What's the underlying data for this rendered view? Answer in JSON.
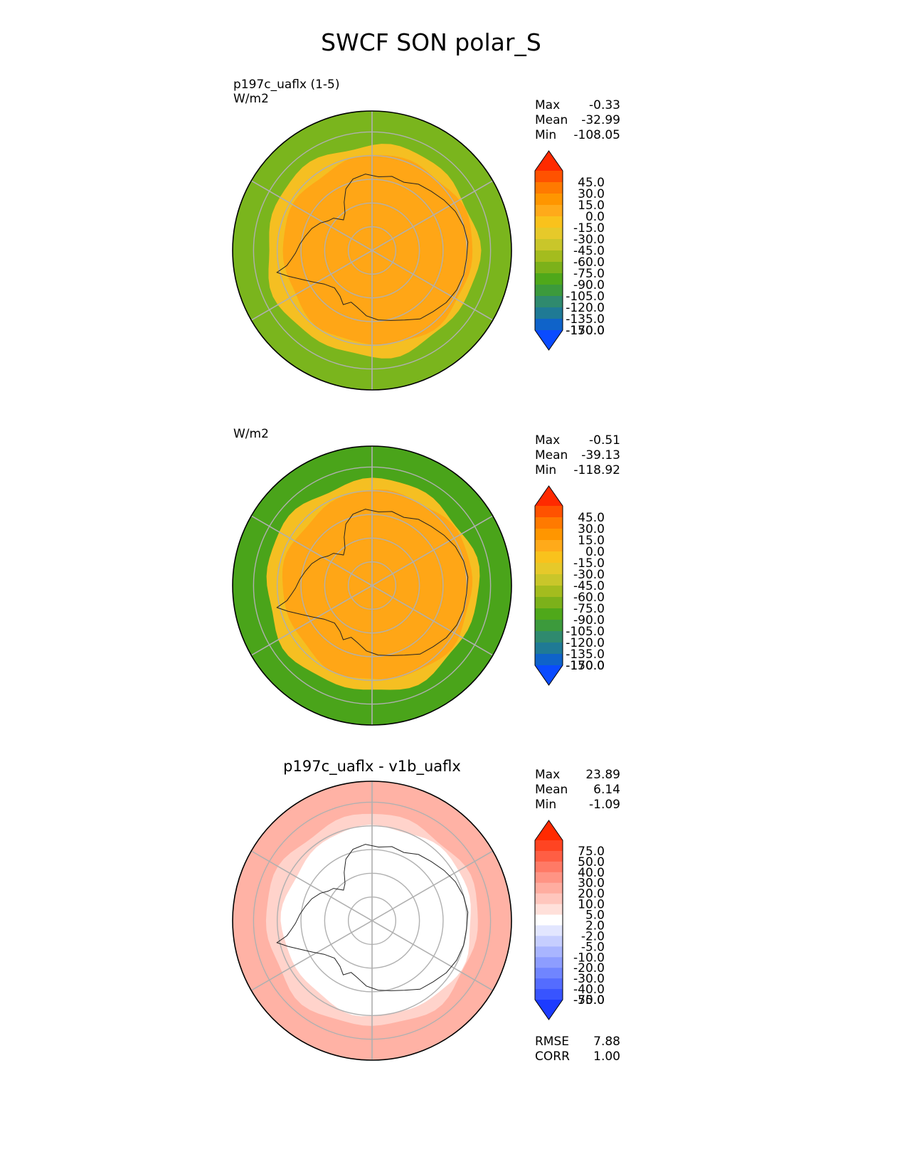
{
  "page_title": "SWCF SON polar_S",
  "chart_data": [
    {
      "type": "heatmap",
      "projection": "south-polar-stereographic",
      "title": "",
      "subtitle_left": "p197c_uaflx (1-5)",
      "units": "W/m2",
      "stats": [
        {
          "label": "Max",
          "value": "-0.33"
        },
        {
          "label": "Mean",
          "value": "-32.99"
        },
        {
          "label": "Min",
          "value": "-108.05"
        }
      ],
      "colorbar": {
        "ticks": [
          "45.0",
          "30.0",
          "15.0",
          "0.0",
          "-15.0",
          "-30.0",
          "-45.0",
          "-60.0",
          "-75.0",
          "-90.0",
          "-105.0",
          "-120.0",
          "-135.0",
          "-150.0",
          "-170.0"
        ],
        "colors": [
          "#ff2a00",
          "#ff5200",
          "#ff7a00",
          "#ff9600",
          "#ffaa1a",
          "#f9c21c",
          "#e6c92a",
          "#c9c62a",
          "#a4bc1e",
          "#7cb11a",
          "#4fa81a",
          "#3c9a3c",
          "#2f8a6e",
          "#1f7a95",
          "#0f63c9",
          "#0a4bff"
        ],
        "extend": "both"
      },
      "field": {
        "outer_ring": "#7ab51d",
        "transition": "#f5bf22",
        "inner": "#ffa616"
      },
      "extra_stats": []
    },
    {
      "type": "heatmap",
      "projection": "south-polar-stereographic",
      "title": "",
      "subtitle_left": "",
      "units": "W/m2",
      "stats": [
        {
          "label": "Max",
          "value": "-0.51"
        },
        {
          "label": "Mean",
          "value": "-39.13"
        },
        {
          "label": "Min",
          "value": "-118.92"
        }
      ],
      "colorbar": {
        "ticks": [
          "45.0",
          "30.0",
          "15.0",
          "0.0",
          "-15.0",
          "-30.0",
          "-45.0",
          "-60.0",
          "-75.0",
          "-90.0",
          "-105.0",
          "-120.0",
          "-135.0",
          "-150.0",
          "-170.0"
        ],
        "colors": [
          "#ff2a00",
          "#ff5200",
          "#ff7a00",
          "#ff9600",
          "#ffaa1a",
          "#f9c21c",
          "#e6c92a",
          "#c9c62a",
          "#a4bc1e",
          "#7cb11a",
          "#4fa81a",
          "#3c9a3c",
          "#2f8a6e",
          "#1f7a95",
          "#0f63c9",
          "#0a4bff"
        ],
        "extend": "both"
      },
      "field": {
        "outer_ring": "#4aa41a",
        "transition": "#f5bf22",
        "inner": "#ffa616"
      },
      "extra_stats": []
    },
    {
      "type": "heatmap",
      "projection": "south-polar-stereographic",
      "title": "p197c_uaflx - v1b_uaflx",
      "subtitle_left": "",
      "units": "",
      "stats": [
        {
          "label": "Max",
          "value": "23.89"
        },
        {
          "label": "Mean",
          "value": "6.14"
        },
        {
          "label": "Min",
          "value": "-1.09"
        }
      ],
      "colorbar": {
        "ticks": [
          "75.0",
          "50.0",
          "40.0",
          "30.0",
          "20.0",
          "10.0",
          "5.0",
          "2.0",
          "-2.0",
          "-5.0",
          "-10.0",
          "-20.0",
          "-30.0",
          "-40.0",
          "-50.0",
          "-75.0"
        ],
        "colors": [
          "#ff2a00",
          "#ff4422",
          "#ff5e44",
          "#ff7a66",
          "#ff9484",
          "#ffada0",
          "#ffc6bd",
          "#ffe0da",
          "#ffffff",
          "#e2e6ff",
          "#c6ceff",
          "#a9b5ff",
          "#8d9dff",
          "#7085ff",
          "#546cff",
          "#3854ff",
          "#1c3bff"
        ],
        "extend": "both"
      },
      "field": {
        "outer_ring": "#ffb2a5",
        "transition": "#ffd3cb",
        "inner": "#ffffff"
      },
      "extra_stats": [
        {
          "label": "RMSE",
          "value": "7.88"
        },
        {
          "label": "CORR",
          "value": "1.00"
        }
      ]
    }
  ]
}
